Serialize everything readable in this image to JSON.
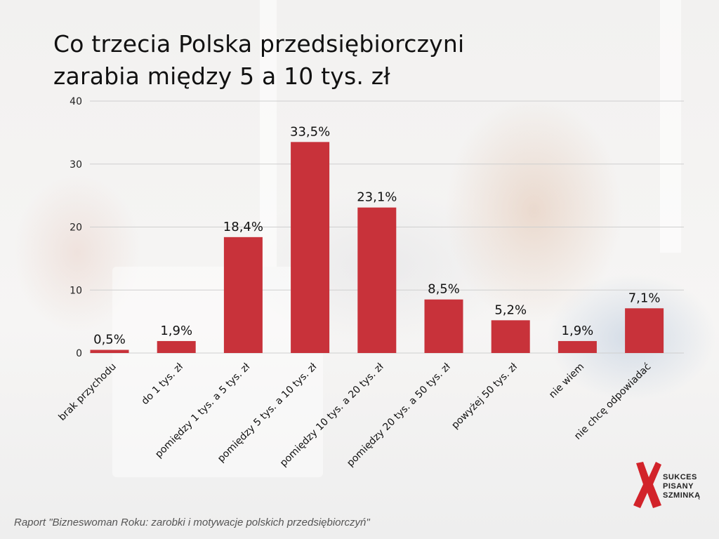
{
  "title_line1": "Co trzecia Polska przedsiębiorczyni",
  "title_line2": "zarabia między 5 a 10 tys. zł",
  "source": "Raport \"Bizneswoman Roku: zarobki i motywacje polskich przedsiębiorczyń\"",
  "logo": {
    "line1": "SUKCES",
    "line2": "PISANY",
    "line3": "SZMINKĄ",
    "mark_color": "#d2232a"
  },
  "colors": {
    "bar": "#c8323a",
    "grid": "#cfcfcf",
    "text": "#111111"
  },
  "chart_data": {
    "type": "bar",
    "title": "Co trzecia Polska przedsiębiorczyni zarabia między 5 a 10 tys. zł",
    "categories": [
      "brak przychodu",
      "do 1 tys. zł",
      "pomiędzy 1 tys. a 5 tys. zł",
      "pomiędzy 5 tys. a 10 tys. zł",
      "pomiędzy 10 tys. a 20 tys. zł",
      "pomiędzy 20 tys. a 50 tys. zł",
      "powyżej 50 tys. zł",
      "nie wiem",
      "nie chcę odpowiadać"
    ],
    "values": [
      0.5,
      1.9,
      18.4,
      33.5,
      23.1,
      8.5,
      5.2,
      1.9,
      7.1
    ],
    "value_labels": [
      "0,5%",
      "1,9%",
      "18,4%",
      "33,5%",
      "23,1%",
      "8,5%",
      "5,2%",
      "1,9%",
      "7,1%"
    ],
    "ylim": [
      0,
      40
    ],
    "yticks": [
      "0",
      "10",
      "20",
      "30",
      "40"
    ],
    "xlabel": "",
    "ylabel": "",
    "grid": true,
    "legend": "none"
  }
}
